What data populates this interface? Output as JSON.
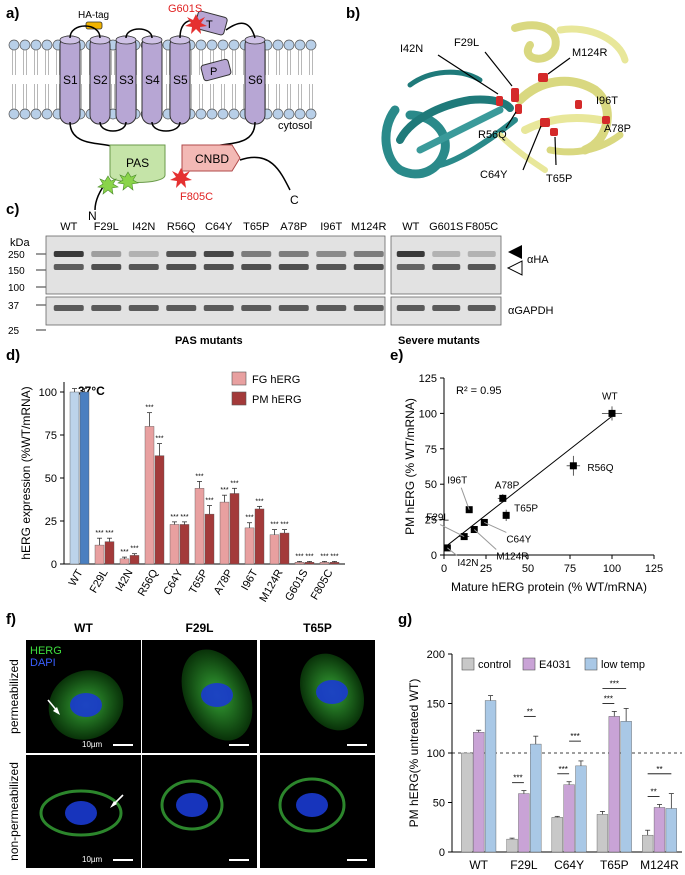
{
  "panels": {
    "a": {
      "label": "a)",
      "ha_tag": "HA-tag",
      "segments": [
        "S1",
        "S2",
        "S3",
        "S4",
        "S5",
        "S6"
      ],
      "mutation_red_top": "G601S",
      "t_label": "T",
      "p_label": "P",
      "pas_label": "PAS",
      "cnbd_label": "CNBD",
      "mutation_red_bottom": "F805C",
      "n_label": "N",
      "c_label": "C",
      "cytosol_label": "cytosol"
    },
    "b": {
      "label": "b)",
      "mutations": [
        "F29L",
        "I42N",
        "M124R",
        "I96T",
        "R56Q",
        "A78P",
        "C64Y",
        "T65P"
      ]
    },
    "c": {
      "label": "c)",
      "kda_label": "kDa",
      "kda_ticks": [
        "250",
        "150",
        "100",
        "37",
        "25"
      ],
      "lanes_pas": [
        "WT",
        "F29L",
        "I42N",
        "R56Q",
        "C64Y",
        "T65P",
        "A78P",
        "I96T",
        "M124R"
      ],
      "lanes_severe": [
        "WT",
        "G601S",
        "F805C"
      ],
      "antibody_ha": "αHA",
      "antibody_gapdh": "αGAPDH",
      "group_pas": "PAS mutants",
      "group_severe": "Severe mutants"
    },
    "f": {
      "label": "f)",
      "columns": [
        "WT",
        "F29L",
        "T65P"
      ],
      "rows": [
        "permeabilized",
        "non-permeabilized"
      ],
      "legend_herg": "HERG",
      "legend_dapi": "DAPI",
      "scale_bar": "10µm"
    }
  },
  "chart_data": [
    {
      "panel": "d)",
      "type": "bar",
      "ylabel": "hERG expression (%WT/mRNA)",
      "annotation": "37°C",
      "categories": [
        "WT",
        "F29L",
        "I42N",
        "R56Q",
        "C64Y",
        "T65P",
        "A78P",
        "I96T",
        "M124R",
        "G601S",
        "F805C"
      ],
      "ylim": [
        0,
        100
      ],
      "yticks": [
        "0",
        "25",
        "50",
        "75",
        "100"
      ],
      "series": [
        {
          "name": "FG hERG",
          "color": "#e8a0a0",
          "wt_color": "#bcd3ea",
          "values": [
            100,
            11,
            3,
            80,
            23,
            44,
            36,
            21,
            17,
            1,
            1
          ],
          "errors": [
            2,
            4,
            1,
            8,
            1.5,
            4,
            4,
            3,
            3,
            0.5,
            0.5
          ],
          "sig": [
            "",
            "***",
            "***",
            "***",
            "***",
            "***",
            "***",
            "***",
            "***",
            "***",
            "***"
          ]
        },
        {
          "name": "PM hERG",
          "color": "#a33a3a",
          "wt_color": "#4a7fc0",
          "values": [
            100,
            13,
            5,
            63,
            23,
            29,
            41,
            32,
            18,
            1,
            1
          ],
          "errors": [
            2,
            2,
            1,
            7,
            1.5,
            5,
            3,
            1.5,
            2,
            0.5,
            0.5
          ],
          "sig": [
            "",
            "***",
            "***",
            "***",
            "***",
            "***",
            "***",
            "***",
            "***",
            "***",
            "***"
          ]
        }
      ]
    },
    {
      "panel": "e)",
      "type": "scatter",
      "xlabel": "Mature hERG protein (% WT/mRNA)",
      "ylabel": "PM hERG (% WT/mRNA)",
      "xlim": [
        0,
        125
      ],
      "ylim": [
        0,
        125
      ],
      "xticks": [
        "0",
        "25",
        "50",
        "75",
        "100",
        "125"
      ],
      "yticks": [
        "0",
        "25",
        "50",
        "75",
        "100",
        "125"
      ],
      "r2": "R² = 0.95",
      "points": [
        {
          "label": "WT",
          "x": 100,
          "y": 100,
          "xerr": 6,
          "yerr": 5
        },
        {
          "label": "R56Q",
          "x": 77,
          "y": 63,
          "xerr": 4,
          "yerr": 7
        },
        {
          "label": "A78P",
          "x": 35,
          "y": 40,
          "xerr": 3,
          "yerr": 3
        },
        {
          "label": "T65P",
          "x": 37,
          "y": 28,
          "xerr": 2,
          "yerr": 4
        },
        {
          "label": "I96T",
          "x": 15,
          "y": 32,
          "xerr": 2,
          "yerr": 2
        },
        {
          "label": "C64Y",
          "x": 24,
          "y": 23,
          "xerr": 2,
          "yerr": 2
        },
        {
          "label": "M124R",
          "x": 18,
          "y": 18,
          "xerr": 2,
          "yerr": 2
        },
        {
          "label": "F29L",
          "x": 12,
          "y": 13,
          "xerr": 3,
          "yerr": 2
        },
        {
          "label": "I42N",
          "x": 2,
          "y": 5,
          "xerr": 1,
          "yerr": 1
        }
      ],
      "fit": {
        "x0": 0,
        "y0": 5,
        "x1": 100,
        "y1": 98
      }
    },
    {
      "panel": "g)",
      "type": "bar",
      "ylabel": "PM hERG(% untreated WT)",
      "categories": [
        "WT",
        "F29L",
        "C64Y",
        "T65P",
        "M124R"
      ],
      "ylim": [
        0,
        200
      ],
      "yticks": [
        "0",
        "50",
        "100",
        "150",
        "200"
      ],
      "reference_line": 100,
      "series": [
        {
          "name": "control",
          "color": "#c8c8c8",
          "values": [
            100,
            13,
            35,
            38,
            17
          ],
          "errors": [
            0,
            1,
            1,
            3,
            5
          ]
        },
        {
          "name": "E4031",
          "color": "#c9a3d6",
          "values": [
            121,
            59,
            68,
            137,
            45
          ],
          "errors": [
            2,
            3,
            3,
            5,
            3
          ]
        },
        {
          "name": "low temp",
          "color": "#a9c8e6",
          "values": [
            153,
            109,
            87,
            132,
            44
          ],
          "errors": [
            5,
            8,
            5,
            13,
            15
          ]
        }
      ],
      "significance": [
        {
          "cat": 1,
          "a": 0,
          "b": 1,
          "label": "***"
        },
        {
          "cat": 1,
          "a": 1,
          "b": 2,
          "label": "**"
        },
        {
          "cat": 2,
          "a": 0,
          "b": 1,
          "label": "***"
        },
        {
          "cat": 2,
          "a": 1,
          "b": 2,
          "label": "***"
        },
        {
          "cat": 3,
          "a": 0,
          "b": 1,
          "label": "***"
        },
        {
          "cat": 3,
          "a": 0,
          "b": 2,
          "label": "***"
        },
        {
          "cat": 4,
          "a": 0,
          "b": 1,
          "label": "**"
        },
        {
          "cat": 4,
          "a": 0,
          "b": 2,
          "label": "**"
        }
      ]
    }
  ]
}
